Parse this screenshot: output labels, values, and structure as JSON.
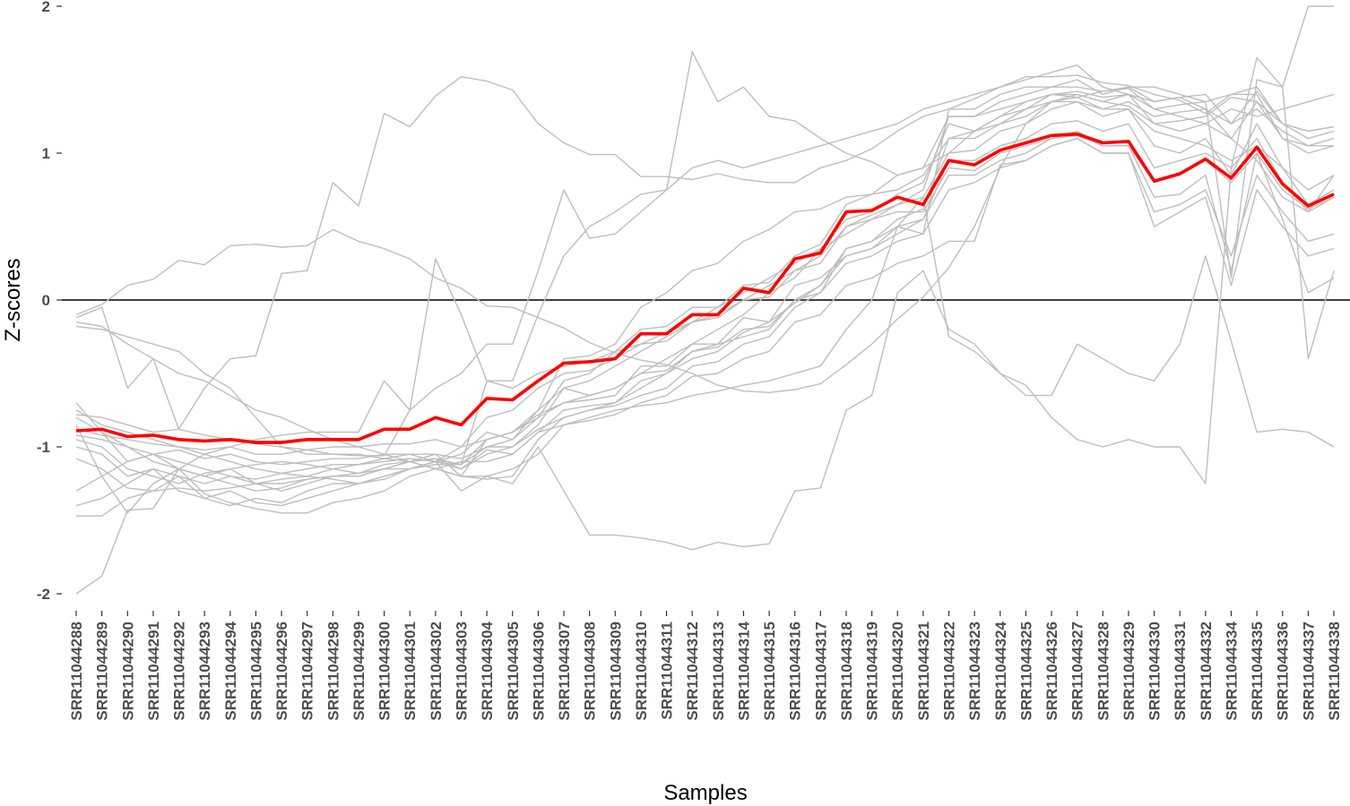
{
  "chart_data": {
    "type": "line",
    "title": "",
    "xlabel": "Samples",
    "ylabel": "Z-scores",
    "ylim": [
      -2.1,
      2.0
    ],
    "y_ticks": [
      -2,
      -1,
      0,
      1,
      2
    ],
    "reference_line_y": 0,
    "grid": false,
    "legend": "none",
    "colors": {
      "background_series": "#bebebe",
      "highlight_series": "#ff0000",
      "zero_line": "#000000"
    },
    "categories": [
      "SRR11044288",
      "SRR11044289",
      "SRR11044290",
      "SRR11044291",
      "SRR11044292",
      "SRR11044293",
      "SRR11044294",
      "SRR11044295",
      "SRR11044296",
      "SRR11044297",
      "SRR11044298",
      "SRR11044299",
      "SRR11044300",
      "SRR11044301",
      "SRR11044302",
      "SRR11044303",
      "SRR11044304",
      "SRR11044305",
      "SRR11044306",
      "SRR11044307",
      "SRR11044308",
      "SRR11044309",
      "SRR11044310",
      "SRR11044311",
      "SRR11044312",
      "SRR11044313",
      "SRR11044314",
      "SRR11044315",
      "SRR11044316",
      "SRR11044317",
      "SRR11044318",
      "SRR11044319",
      "SRR11044320",
      "SRR11044321",
      "SRR11044322",
      "SRR11044323",
      "SRR11044324",
      "SRR11044325",
      "SRR11044326",
      "SRR11044327",
      "SRR11044328",
      "SRR11044329",
      "SRR11044330",
      "SRR11044331",
      "SRR11044332",
      "SRR11044334",
      "SRR11044335",
      "SRR11044336",
      "SRR11044337",
      "SRR11044338"
    ],
    "highlight": [
      -0.89,
      -0.88,
      -0.93,
      -0.92,
      -0.95,
      -0.96,
      -0.95,
      -0.97,
      -0.97,
      -0.95,
      -0.95,
      -0.95,
      -0.88,
      -0.88,
      -0.8,
      -0.85,
      -0.67,
      -0.68,
      -0.55,
      -0.43,
      -0.42,
      -0.4,
      -0.23,
      -0.23,
      -0.1,
      -0.1,
      0.08,
      0.05,
      0.28,
      0.32,
      0.6,
      0.61,
      0.7,
      0.65,
      0.95,
      0.92,
      1.02,
      1.07,
      1.12,
      1.13,
      1.07,
      1.08,
      0.81,
      0.86,
      0.96,
      0.83,
      1.04,
      0.79,
      0.64,
      0.72
    ],
    "series": [
      {
        "values": [
          -0.1,
          -0.03,
          0.1,
          0.14,
          0.27,
          0.24,
          0.37,
          0.38,
          0.36,
          0.37,
          0.48,
          0.4,
          0.35,
          0.28,
          0.15,
          0.08,
          -0.04,
          -0.05,
          -0.12,
          -0.19,
          -0.29,
          -0.36,
          -0.41,
          -0.44,
          -0.5,
          -0.58,
          -0.62,
          -0.63,
          -0.61,
          -0.57,
          -0.44,
          -0.3,
          -0.13,
          0.02,
          0.22,
          0.5,
          0.9,
          1.2,
          1.35,
          1.4,
          1.35,
          1.32,
          1.2,
          1.22,
          1.25,
          1.38,
          1.35,
          1.2,
          1.1,
          1.15
        ]
      },
      {
        "values": [
          -0.12,
          -0.05,
          -0.6,
          -0.4,
          -0.88,
          -0.6,
          -0.4,
          -0.38,
          0.18,
          0.2,
          0.8,
          0.64,
          1.27,
          1.18,
          1.39,
          1.52,
          1.49,
          1.43,
          1.2,
          1.07,
          0.99,
          0.99,
          0.84,
          0.84,
          0.82,
          0.86,
          0.82,
          0.8,
          0.8,
          0.9,
          0.95,
          1.03,
          1.15,
          1.25,
          1.3,
          1.37,
          1.45,
          1.52,
          1.52,
          1.53,
          1.48,
          1.46,
          1.4,
          1.36,
          1.27,
          1.4,
          1.45,
          1.2,
          1.15,
          1.18
        ]
      },
      {
        "values": [
          -0.18,
          -0.2,
          -0.25,
          -0.3,
          -0.35,
          -0.5,
          -0.6,
          -0.8,
          -1.0,
          -1.05,
          -1.05,
          -1.06,
          -1.06,
          -0.75,
          0.28,
          -0.1,
          -0.55,
          -0.55,
          -0.1,
          0.3,
          0.5,
          0.6,
          0.72,
          0.75,
          1.69,
          1.35,
          1.45,
          1.25,
          1.22,
          1.1,
          1.0,
          0.94,
          0.85,
          0.9,
          1.0,
          1.15,
          1.25,
          1.35,
          1.4,
          1.38,
          1.42,
          1.44,
          1.3,
          1.33,
          1.35,
          1.4,
          1.4,
          1.1,
          1.05,
          1.05
        ]
      },
      {
        "values": [
          -2.0,
          -1.88,
          -1.43,
          -1.42,
          -1.15,
          -1.05,
          -1.0,
          -0.95,
          -0.92,
          -0.9,
          -0.9,
          -0.9,
          -0.55,
          -0.75,
          -0.6,
          -0.5,
          -0.3,
          -0.3,
          0.2,
          0.75,
          0.42,
          0.45,
          0.6,
          0.75,
          0.9,
          0.95,
          0.9,
          0.95,
          1.0,
          1.05,
          1.1,
          1.15,
          1.2,
          1.3,
          1.35,
          1.4,
          1.45,
          1.5,
          1.55,
          1.6,
          1.45,
          1.4,
          1.2,
          1.15,
          1.2,
          1.3,
          1.25,
          1.3,
          1.35,
          1.4
        ]
      },
      {
        "values": [
          -1.08,
          -1.15,
          -1.28,
          -1.3,
          -1.2,
          -1.35,
          -1.3,
          -1.38,
          -1.4,
          -1.35,
          -1.3,
          -1.25,
          -1.22,
          -1.15,
          -1.1,
          -1.0,
          -0.95,
          -0.9,
          -0.75,
          -0.6,
          -0.55,
          -0.45,
          -0.35,
          -0.25,
          -0.15,
          -0.05,
          0.05,
          0.15,
          0.25,
          0.35,
          0.45,
          0.55,
          0.65,
          0.75,
          1.25,
          1.25,
          1.3,
          1.35,
          1.4,
          1.4,
          1.35,
          1.4,
          1.3,
          1.25,
          1.2,
          1.1,
          0.95,
          0.7,
          0.6,
          0.85
        ]
      },
      {
        "values": [
          -1.47,
          -1.47,
          -1.35,
          -1.3,
          -1.28,
          -1.3,
          -1.28,
          -1.25,
          -1.25,
          -1.22,
          -1.2,
          -1.18,
          -1.15,
          -1.15,
          -1.12,
          -1.12,
          -1.0,
          -1.0,
          -0.85,
          -0.6,
          -0.65,
          -0.6,
          -0.5,
          -0.4,
          -0.3,
          -0.2,
          -0.1,
          0.05,
          0.15,
          0.35,
          0.55,
          0.6,
          0.72,
          0.8,
          1.2,
          1.15,
          1.2,
          1.3,
          1.35,
          1.38,
          1.3,
          1.3,
          1.15,
          1.1,
          1.05,
          0.95,
          1.05,
          0.9,
          0.75,
          0.85
        ]
      },
      {
        "values": [
          -0.7,
          -0.9,
          -1.1,
          -1.05,
          -1.15,
          -1.2,
          -1.25,
          -1.3,
          -1.28,
          -1.22,
          -1.2,
          -1.2,
          -1.15,
          -1.1,
          -1.15,
          -1.2,
          -0.95,
          -0.9,
          -0.8,
          -0.55,
          -0.5,
          -0.35,
          -0.3,
          -0.22,
          -0.15,
          -0.1,
          0.0,
          0.1,
          0.2,
          0.3,
          0.5,
          0.58,
          0.65,
          0.7,
          1.0,
          1.02,
          1.15,
          1.2,
          1.3,
          1.35,
          1.25,
          1.3,
          1.05,
          1.0,
          1.1,
          0.85,
          1.2,
          0.9,
          0.65,
          0.75
        ]
      },
      {
        "values": [
          -0.85,
          -1.2,
          -1.45,
          -1.25,
          -1.15,
          -1.32,
          -1.38,
          -1.42,
          -1.45,
          -1.45,
          -1.38,
          -1.35,
          -1.3,
          -1.2,
          -1.15,
          -1.1,
          -1.1,
          -1.05,
          -0.9,
          -0.75,
          -0.72,
          -0.7,
          -0.55,
          -0.5,
          -0.4,
          -0.35,
          -0.22,
          -0.15,
          -0.02,
          0.1,
          0.3,
          0.35,
          0.45,
          0.55,
          0.95,
          0.95,
          1.05,
          1.1,
          1.2,
          1.22,
          1.15,
          1.2,
          0.9,
          0.95,
          1.0,
          0.9,
          1.1,
          0.8,
          0.6,
          0.7
        ]
      },
      {
        "values": [
          -0.95,
          -1.0,
          -1.15,
          -1.2,
          -1.25,
          -1.18,
          -1.15,
          -1.12,
          -1.1,
          -1.12,
          -1.15,
          -1.18,
          -1.12,
          -1.1,
          -1.08,
          -1.15,
          -1.05,
          -1.0,
          -0.88,
          -0.8,
          -0.75,
          -0.7,
          -0.6,
          -0.5,
          -0.35,
          -0.3,
          -0.25,
          -0.2,
          0.0,
          0.1,
          0.35,
          0.4,
          0.55,
          0.62,
          1.1,
          1.15,
          1.25,
          1.3,
          1.4,
          1.42,
          1.38,
          1.4,
          1.35,
          1.38,
          1.3,
          1.1,
          1.35,
          1.1,
          1.0,
          1.05
        ]
      },
      {
        "values": [
          -0.92,
          -0.95,
          -1.0,
          -1.05,
          -1.02,
          -1.08,
          -1.05,
          -1.1,
          -1.12,
          -1.1,
          -1.08,
          -1.08,
          -1.05,
          -1.05,
          -1.05,
          -1.08,
          -1.0,
          -0.95,
          -0.75,
          -0.4,
          -0.38,
          -0.3,
          -0.05,
          0.05,
          0.2,
          0.25,
          0.4,
          0.48,
          0.6,
          0.62,
          0.7,
          0.72,
          0.75,
          0.85,
          1.1,
          1.1,
          1.2,
          1.25,
          1.35,
          1.35,
          1.3,
          1.35,
          1.25,
          1.28,
          1.3,
          1.2,
          1.3,
          1.15,
          1.05,
          1.1
        ]
      },
      {
        "values": [
          -0.88,
          -0.92,
          -0.95,
          -0.98,
          -1.0,
          -1.02,
          -1.0,
          -1.05,
          -1.05,
          -1.02,
          -1.0,
          -1.0,
          -0.98,
          -0.98,
          -0.95,
          -1.0,
          -0.8,
          -0.75,
          -0.6,
          -0.5,
          -0.48,
          -0.4,
          -0.3,
          -0.28,
          -0.15,
          -0.12,
          0.0,
          0.02,
          0.2,
          0.25,
          0.5,
          0.55,
          0.6,
          0.6,
          0.9,
          0.88,
          1.0,
          1.05,
          1.1,
          1.12,
          1.05,
          1.05,
          0.8,
          0.85,
          0.95,
          0.8,
          1.0,
          0.75,
          0.62,
          0.7
        ]
      },
      {
        "values": [
          -1.0,
          -1.05,
          -1.2,
          -1.15,
          -1.3,
          -1.35,
          -1.4,
          -1.35,
          -1.38,
          -1.3,
          -1.25,
          -1.25,
          -1.2,
          -1.15,
          -1.1,
          -1.05,
          -0.9,
          -0.95,
          -0.8,
          -0.7,
          -0.68,
          -0.65,
          -0.45,
          -0.45,
          -0.3,
          -0.3,
          -0.12,
          -0.15,
          0.1,
          0.15,
          0.3,
          0.35,
          0.5,
          0.45,
          1.3,
          1.3,
          1.4,
          1.45,
          1.45,
          1.5,
          1.4,
          1.45,
          1.45,
          1.4,
          1.35,
          0.15,
          1.5,
          1.45,
          2.0,
          2.0
        ]
      },
      {
        "values": [
          -0.78,
          -0.8,
          -0.85,
          -0.9,
          -0.88,
          -0.92,
          -0.95,
          -0.98,
          -1.0,
          -1.02,
          -1.05,
          -1.05,
          -1.08,
          -1.1,
          -1.08,
          -1.12,
          -0.55,
          -0.6,
          -0.5,
          -0.45,
          -0.42,
          -0.35,
          -0.2,
          -0.18,
          -0.05,
          -0.05,
          0.1,
          0.12,
          0.3,
          0.38,
          0.65,
          0.72,
          0.85,
          0.9,
          1.25,
          1.25,
          1.35,
          1.4,
          1.45,
          1.45,
          1.42,
          1.45,
          1.35,
          1.38,
          1.4,
          1.2,
          1.42,
          1.2,
          1.15,
          1.18
        ]
      },
      {
        "values": [
          -0.8,
          -0.9,
          -1.0,
          -1.1,
          -1.15,
          -1.2,
          -1.15,
          -1.25,
          -1.3,
          -1.25,
          -1.2,
          -1.2,
          -1.15,
          -1.1,
          -1.05,
          -1.2,
          -1.22,
          -1.2,
          -0.95,
          -0.8,
          -0.75,
          -0.72,
          -0.65,
          -0.6,
          -0.45,
          -0.42,
          -0.3,
          -0.25,
          -0.05,
          0.05,
          0.35,
          0.4,
          0.5,
          0.55,
          0.85,
          0.85,
          0.95,
          1.0,
          1.1,
          1.15,
          1.05,
          1.05,
          0.7,
          0.72,
          0.85,
          0.2,
          1.0,
          0.55,
          0.05,
          0.15
        ]
      },
      {
        "values": [
          -0.75,
          -0.85,
          -0.9,
          -0.95,
          -1.0,
          -1.05,
          -1.1,
          -1.15,
          -1.18,
          -1.15,
          -1.12,
          -1.12,
          -1.08,
          -1.05,
          -1.1,
          -1.15,
          -1.02,
          -1.05,
          -0.9,
          -0.85,
          -0.82,
          -0.78,
          -0.7,
          -0.65,
          -0.52,
          -0.5,
          -0.4,
          -0.35,
          -0.15,
          -0.1,
          0.1,
          0.15,
          0.25,
          0.3,
          0.4,
          0.4,
          0.92,
          0.95,
          1.05,
          1.1,
          1.0,
          1.0,
          0.5,
          0.6,
          0.7,
          0.1,
          0.75,
          0.5,
          0.3,
          0.35
        ]
      },
      {
        "values": [
          -1.4,
          -1.35,
          -1.25,
          -1.15,
          -1.2,
          -1.25,
          -1.2,
          -1.22,
          -1.18,
          -1.2,
          -1.15,
          -1.12,
          -1.1,
          -1.08,
          -1.1,
          -1.12,
          -0.95,
          -0.9,
          -0.78,
          -0.7,
          -0.65,
          -0.6,
          -0.5,
          -0.48,
          -0.35,
          -0.32,
          -0.2,
          -0.18,
          0.0,
          0.05,
          0.25,
          0.3,
          0.4,
          0.45,
          0.75,
          0.8,
          0.9,
          0.95,
          1.05,
          1.1,
          1.0,
          1.0,
          0.6,
          0.65,
          0.75,
          0.3,
          0.85,
          0.6,
          0.4,
          0.45
        ]
      },
      {
        "values": [
          -0.15,
          -0.18,
          -0.3,
          -0.4,
          -0.5,
          -0.55,
          -0.65,
          -0.75,
          -0.8,
          -0.88,
          -0.95,
          -1.0,
          -1.05,
          -1.1,
          -1.15,
          -1.2,
          -1.2,
          -1.25,
          -1.0,
          -1.3,
          -1.6,
          -1.6,
          -1.62,
          -1.65,
          -1.7,
          -1.65,
          -1.68,
          -1.66,
          -1.3,
          -1.28,
          -0.75,
          -0.65,
          0.05,
          0.2,
          -0.2,
          -0.3,
          -0.5,
          -0.65,
          -0.65,
          -0.3,
          -0.4,
          -0.5,
          -0.55,
          -0.3,
          0.3,
          -0.28,
          -0.9,
          -0.88,
          -0.9,
          -1.0
        ]
      },
      {
        "values": [
          -1.3,
          -1.2,
          -1.1,
          -1.05,
          -1.1,
          -1.15,
          -1.2,
          -1.25,
          -1.22,
          -1.2,
          -1.22,
          -1.25,
          -1.2,
          -1.15,
          -1.1,
          -1.3,
          -1.2,
          -1.15,
          -1.05,
          -0.85,
          -0.8,
          -0.75,
          -0.72,
          -0.7,
          -0.65,
          -0.62,
          -0.58,
          -0.55,
          -0.5,
          -0.45,
          -0.2,
          0.0,
          0.5,
          0.7,
          -0.25,
          -0.35,
          -0.5,
          -0.58,
          -0.8,
          -0.95,
          -1.0,
          -0.95,
          -1.0,
          -1.0,
          -1.25,
          0.9,
          1.65,
          1.45,
          -0.4,
          0.2
        ]
      }
    ]
  }
}
